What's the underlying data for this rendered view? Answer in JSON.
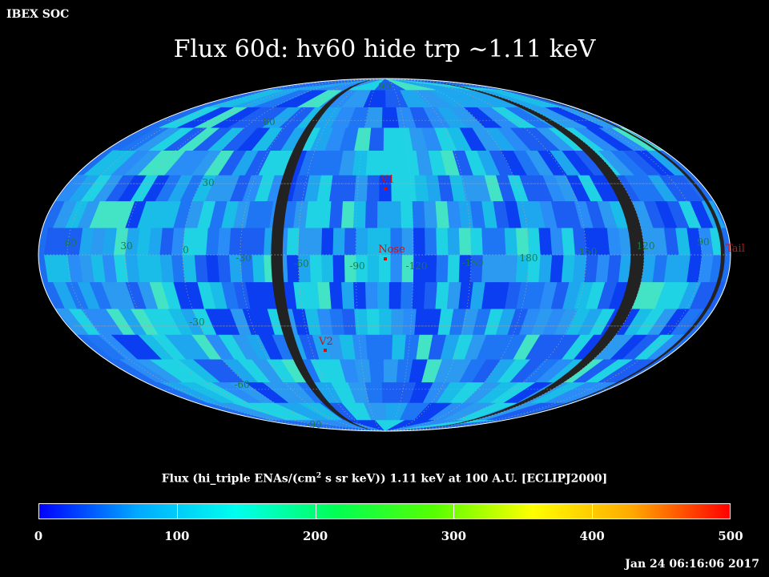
{
  "header": {
    "organization": "IBEX SOC",
    "title": "Flux   60d: hv60 hide trp ~1.11 keV"
  },
  "map": {
    "projection": "Mollweide (ecliptic, J2000)",
    "colors": {
      "ocean_fallback": "#1e6cf0",
      "gap": "#222222",
      "grid": "#aaaaaa",
      "label": "#1a7a40",
      "marker": "#cc1111"
    },
    "lon_labels": [
      "60",
      "30",
      "0",
      "-30",
      "-60",
      "-90",
      "-120",
      "-150",
      "180",
      "150",
      "120",
      "90"
    ],
    "lat_labels": [
      "90",
      "60",
      "30",
      "-30",
      "-60",
      "-90"
    ],
    "markers": [
      {
        "name": "V1",
        "label": "V1"
      },
      {
        "name": "Nose",
        "label": "Nose"
      },
      {
        "name": "V2",
        "label": "V2"
      },
      {
        "name": "Tail",
        "label": "Tail"
      }
    ]
  },
  "colorbar": {
    "label_before": "Flux (hi_triple ENAs/(cm",
    "label_sup": "2",
    "label_after": " s sr keV))  1.11 keV at 100 A.U. [ECLIPJ2000]",
    "min": 0,
    "max": 500,
    "tick_values": [
      0,
      100,
      200,
      300,
      400,
      500
    ],
    "tick_labels": [
      "0",
      "100",
      "200",
      "300",
      "400",
      "500"
    ],
    "gradient": [
      "#0000ff",
      "#00aaff",
      "#00ffee",
      "#00ff55",
      "#55ff00",
      "#ffff00",
      "#ffaa00",
      "#ff0000"
    ]
  },
  "footer": {
    "timestamp": "Jan 24 06:16:06 2017"
  }
}
